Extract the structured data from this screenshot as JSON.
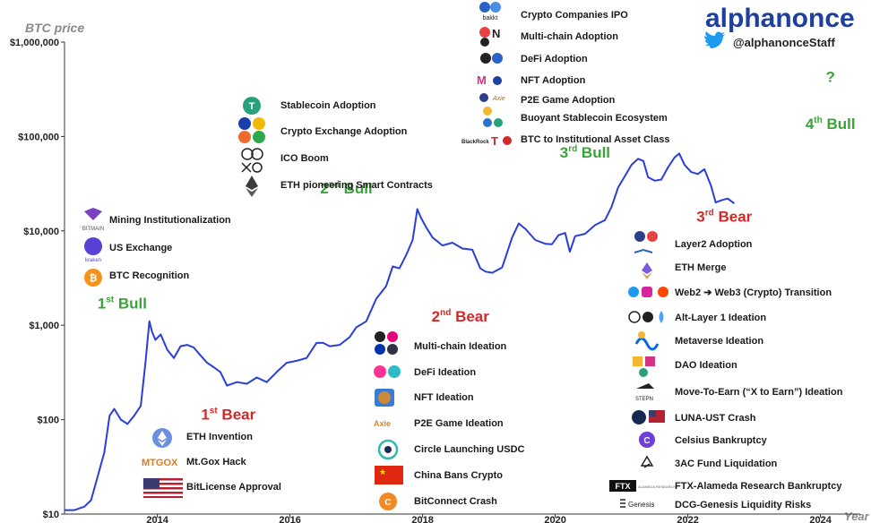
{
  "brand": {
    "logo_text": "alphanonce",
    "twitter_handle": "@alphanonceStaff"
  },
  "chart_data": {
    "type": "line",
    "ylabel": "BTC price",
    "xlabel": "Year",
    "yscale": "log",
    "ylim": [
      10,
      1000000
    ],
    "xlim": [
      2012.6,
      2024.6
    ],
    "yticks": [
      {
        "value": 10,
        "label": "$10"
      },
      {
        "value": 100,
        "label": "$100"
      },
      {
        "value": 1000,
        "label": "$1,000"
      },
      {
        "value": 10000,
        "label": "$10,000"
      },
      {
        "value": 100000,
        "label": "$100,000"
      },
      {
        "value": 1000000,
        "label": "$1,000,000"
      }
    ],
    "xticks": [
      {
        "value": 2014,
        "label": "2014"
      },
      {
        "value": 2016,
        "label": "2016"
      },
      {
        "value": 2018,
        "label": "2018"
      },
      {
        "value": 2020,
        "label": "2020"
      },
      {
        "value": 2022,
        "label": "2022"
      },
      {
        "value": 2024,
        "label": "2024"
      }
    ],
    "series": [
      {
        "color": "#2a3fd9",
        "x": [
          2012.6,
          2012.75,
          2012.9,
          2013.0,
          2013.1,
          2013.2,
          2013.28,
          2013.35,
          2013.45,
          2013.55,
          2013.65,
          2013.75,
          2013.82,
          2013.88,
          2013.92,
          2013.97,
          2014.05,
          2014.15,
          2014.25,
          2014.35,
          2014.45,
          2014.55,
          2014.65,
          2014.75,
          2014.85,
          2014.95,
          2015.05,
          2015.2,
          2015.35,
          2015.5,
          2015.65,
          2015.8,
          2015.95,
          2016.1,
          2016.25,
          2016.4,
          2016.5,
          2016.6,
          2016.75,
          2016.9,
          2017.0,
          2017.15,
          2017.3,
          2017.45,
          2017.55,
          2017.65,
          2017.75,
          2017.85,
          2017.92,
          2017.97,
          2018.05,
          2018.15,
          2018.3,
          2018.45,
          2018.6,
          2018.75,
          2018.87,
          2018.95,
          2019.05,
          2019.2,
          2019.35,
          2019.45,
          2019.55,
          2019.7,
          2019.85,
          2019.95,
          2020.05,
          2020.15,
          2020.22,
          2020.3,
          2020.45,
          2020.6,
          2020.75,
          2020.85,
          2020.95,
          2021.05,
          2021.15,
          2021.25,
          2021.33,
          2021.4,
          2021.5,
          2021.6,
          2021.7,
          2021.8,
          2021.87,
          2021.95,
          2022.05,
          2022.15,
          2022.25,
          2022.35,
          2022.42,
          2022.5,
          2022.6,
          2022.7
        ],
        "y": [
          11,
          11,
          12,
          14,
          25,
          45,
          110,
          130,
          100,
          90,
          110,
          140,
          400,
          1100,
          850,
          700,
          800,
          550,
          450,
          600,
          620,
          580,
          480,
          400,
          360,
          320,
          230,
          250,
          240,
          280,
          250,
          320,
          400,
          420,
          450,
          650,
          650,
          600,
          620,
          750,
          950,
          1100,
          1900,
          2600,
          4200,
          4000,
          5500,
          8000,
          17000,
          14000,
          11000,
          8500,
          7000,
          7500,
          6500,
          6300,
          4000,
          3700,
          3600,
          4100,
          8500,
          12000,
          10500,
          8000,
          7300,
          7200,
          9000,
          9500,
          6000,
          8800,
          9300,
          11500,
          13000,
          18000,
          29000,
          38000,
          50000,
          58000,
          55000,
          37000,
          34000,
          35000,
          47000,
          60000,
          66000,
          50000,
          42000,
          40000,
          45000,
          30000,
          20000,
          21000,
          22000,
          19500
        ]
      }
    ],
    "phases": [
      {
        "text": "1st Bull",
        "x": 2013.47,
        "y": 1500,
        "color": "#3aa33a"
      },
      {
        "text": "1st Bear",
        "x": 2015.07,
        "y": 100,
        "color": "#d42828"
      },
      {
        "text": "2nd Bull",
        "x": 2016.85,
        "y": 25000,
        "color": "#3aa33a"
      },
      {
        "text": "2nd Bear",
        "x": 2018.57,
        "y": 1100,
        "color": "#d42828"
      },
      {
        "text": "3rd Bull",
        "x": 2020.45,
        "y": 60000,
        "color": "#3aa33a"
      },
      {
        "text": "3rd Bear",
        "x": 2022.55,
        "y": 12500,
        "color": "#d42828"
      },
      {
        "text": "4th Bull",
        "x": 2024.15,
        "y": 120000,
        "color": "#3aa33a"
      },
      {
        "text": "?",
        "x": 2024.15,
        "y": 380000,
        "color": "#3aa33a"
      }
    ]
  },
  "annotations": {
    "first_bull": [
      "Mining Institutionalization",
      "US Exchange",
      "BTC Recognition"
    ],
    "first_bear": [
      "ETH Invention",
      "Mt.Gox Hack",
      "BitLicense Approval"
    ],
    "second_bull": [
      "Stablecoin Adoption",
      "Crypto Exchange Adoption",
      "ICO Boom",
      "ETH pioneering Smart Contracts"
    ],
    "second_bear": [
      "Multi-chain Ideation",
      "DeFi Ideation",
      "NFT Ideation",
      "P2E Game Ideation",
      "Circle Launching USDC",
      "China Bans Crypto",
      "BitConnect Crash"
    ],
    "third_bull": [
      "Crypto Companies IPO",
      "Multi-chain Adoption",
      "DeFi Adoption",
      "NFT Adoption",
      "P2E Game Adoption",
      "Buoyant Stablecoin Ecosystem",
      "BTC to Institutional Asset Class"
    ],
    "third_bear": [
      "Layer2 Adoption",
      "ETH Merge",
      "Web2 ➔ Web3 (Crypto) Transition",
      "Alt-Layer 1 Ideation",
      "Metaverse Ideation",
      "DAO Ideation",
      "Move-To-Earn (“X to Earn”) Ideation",
      "LUNA-UST Crash",
      "Celsius Bankruptcy",
      "3AC Fund Liquidation",
      "FTX-Alameda Research Bankruptcy",
      "DCG-Genesis Liquidity Risks"
    ]
  },
  "icon_logos": {
    "mining": "BITMAIN",
    "exchange": "kraken",
    "mtgox": "MTGOX",
    "ftx": "FTX",
    "alameda": "ALAMEDA RESEARCH",
    "genesis": "Genesis",
    "stepn": "STEPN",
    "bakkt": "bakkt",
    "blackrock": "BlackRock"
  },
  "colors": {
    "bull": "#3aa33a",
    "bear": "#d42828",
    "line": "#2a3fd9",
    "axis_label": "#8a8a8a",
    "brand_blue": "#1c3fa0",
    "twitter": "#1d9bf0"
  }
}
